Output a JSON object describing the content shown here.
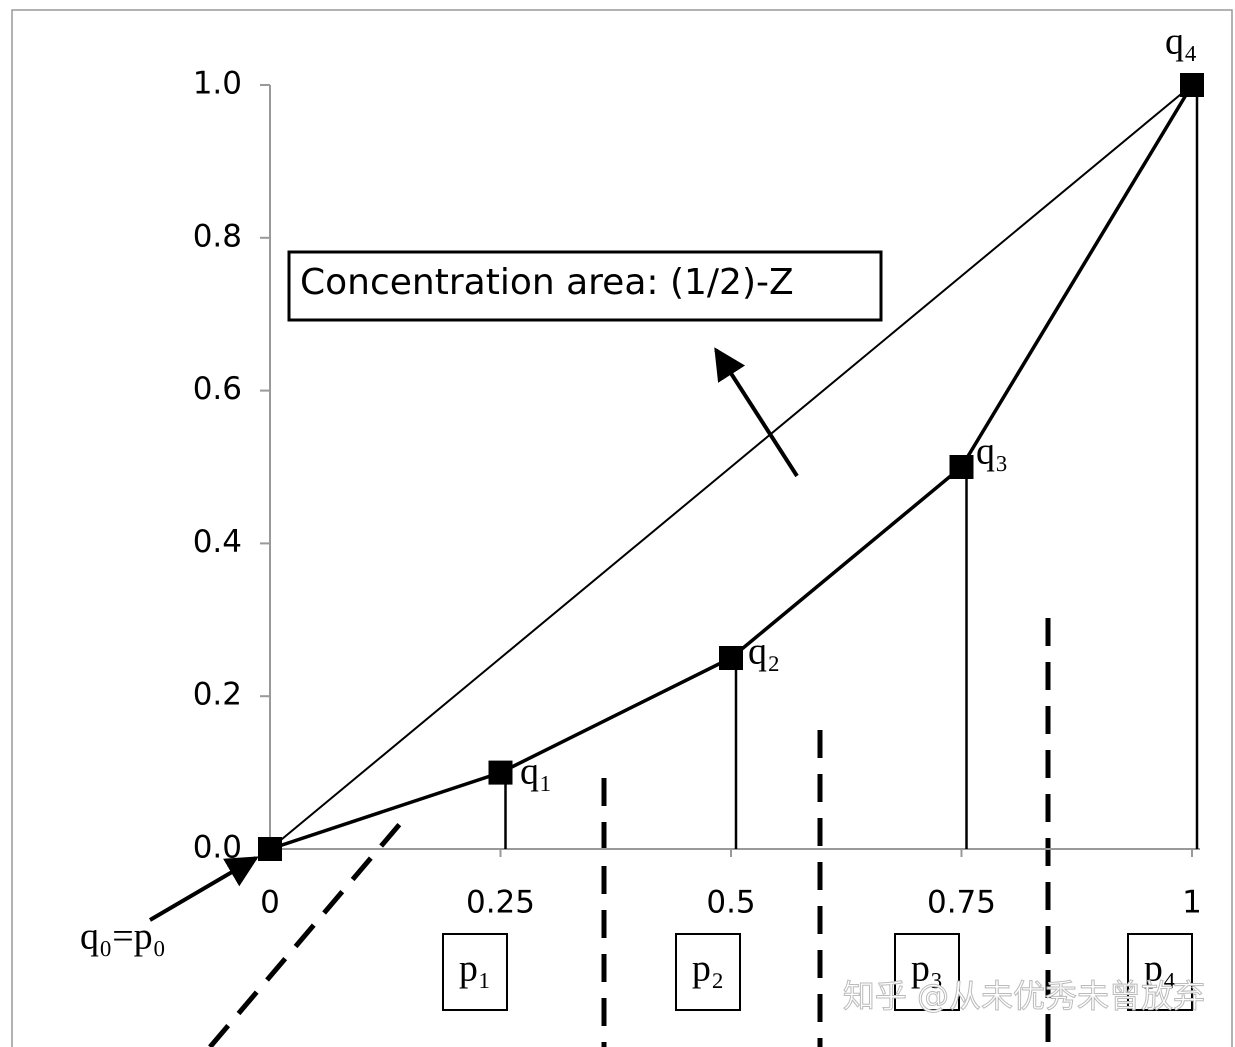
{
  "chart_data": {
    "type": "line",
    "x": [
      0,
      0.25,
      0.5,
      0.75,
      1
    ],
    "xlim": [
      0,
      1
    ],
    "ylim": [
      0,
      1
    ],
    "xticks": [
      0,
      0.25,
      0.5,
      0.75,
      1
    ],
    "yticks": [
      {
        "value": 0,
        "label": "0.0"
      },
      0.2,
      0.4,
      0.6,
      0.8,
      {
        "value": 1,
        "label": "1.0"
      }
    ],
    "series": [
      {
        "color": "#000000",
        "values": [
          0,
          0.1,
          0.25,
          0.5,
          1
        ]
      },
      {
        "color": "#000000",
        "values": [
          0,
          0.25,
          0.5,
          0.75,
          1
        ]
      }
    ],
    "point_labels": [
      "q₀=p₀",
      "q₁",
      "q₂",
      "q₃",
      "q₄"
    ],
    "segment_labels": [
      "p₁",
      "p₂",
      "p₃",
      "p₄"
    ],
    "annotation": "Concentration area: (1/2)-Z",
    "watermark": "知乎 @从未优秀未曾放弃"
  }
}
